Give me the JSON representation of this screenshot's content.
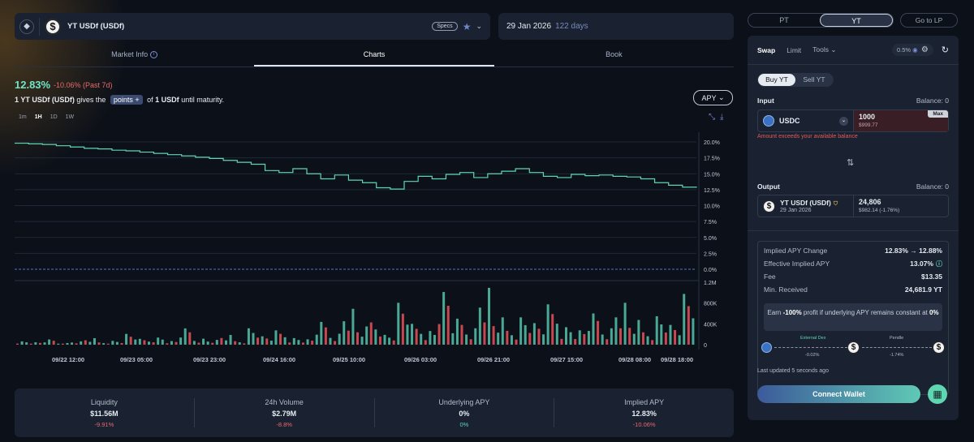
{
  "market": {
    "name": "YT USDf (USDf)",
    "specs_label": "Specs",
    "maturity_date": "29 Jan 2026",
    "days_left": "122 days"
  },
  "tabs": [
    "Market Info",
    "Charts",
    "Book"
  ],
  "summary": {
    "apy": "12.83%",
    "change": "-10.06% (Past 7d)",
    "sentence_pre": "1 YT USDf (USDf)",
    "sentence_mid": " gives the ",
    "points_label": "points +",
    "sentence_post_a": " of ",
    "sentence_post_b": "1 USDf",
    "sentence_post_c": " until maturity.",
    "selector": "APY"
  },
  "timeframes": [
    "1m",
    "1H",
    "1D",
    "1W"
  ],
  "chart_data": {
    "type": "line",
    "y_ticks": [
      "20.0%",
      "17.5%",
      "15.0%",
      "12.5%",
      "10.0%",
      "7.5%",
      "5.0%",
      "2.5%",
      "0.0%"
    ],
    "ylim": [
      0,
      20
    ],
    "volume_ticks": [
      "1.2M",
      "800K",
      "400K",
      "0"
    ],
    "x_ticks": [
      "09/22 12:00",
      "09/23 05:00",
      "09/23 23:00",
      "09/24 16:00",
      "09/25 10:00",
      "09/26 03:00",
      "09/26 21:00",
      "09/27 15:00",
      "09/28 08:00",
      "09/28 18:00"
    ],
    "apy_series": [
      19.8,
      19.7,
      19.6,
      19.4,
      19.2,
      19.0,
      18.9,
      18.7,
      18.6,
      18.4,
      18.2,
      18.0,
      17.8,
      17.6,
      17.4,
      17.1,
      16.8,
      16.5,
      15.5,
      15.2,
      15.8,
      15.0,
      14.2,
      14.8,
      14.0,
      13.6,
      12.8,
      12.6,
      13.8,
      14.6,
      14.2,
      14.9,
      15.2,
      14.4,
      15.0,
      15.4,
      15.8,
      15.2,
      14.6,
      14.4,
      14.9,
      14.7,
      14.8,
      14.6,
      14.5,
      14.2,
      13.6,
      13.2,
      12.9,
      12.8
    ],
    "volume_series": [
      60,
      40,
      80,
      30,
      55,
      100,
      45,
      70,
      180,
      90,
      130,
      60,
      250,
      110,
      80,
      150,
      70,
      300,
      140,
      220,
      120,
      90,
      350,
      200,
      600,
      280,
      450,
      180,
      700,
      320,
      250,
      880,
      400,
      300,
      950,
      420,
      280,
      500,
      360,
      620,
      320,
      240,
      480,
      300,
      700,
      380,
      250,
      520,
      330,
      780
    ]
  },
  "stats": [
    {
      "label": "Liquidity",
      "value": "$11.56M",
      "change": "-9.91%",
      "dir": "neg"
    },
    {
      "label": "24h Volume",
      "value": "$2.79M",
      "change": "-8.8%",
      "dir": "neg"
    },
    {
      "label": "Underlying APY",
      "value": "0%",
      "change": "0%",
      "dir": "pos"
    },
    {
      "label": "Implied APY",
      "value": "12.83%",
      "change": "-10.06%",
      "dir": "neg"
    }
  ],
  "toggle": {
    "pt": "PT",
    "yt": "YT",
    "go_lp": "Go to LP"
  },
  "trade": {
    "swap": "Swap",
    "limit": "Limit",
    "tools": "Tools",
    "slippage": "0.5%",
    "buy": "Buy YT",
    "sell": "Sell YT",
    "input_label": "Input",
    "input_balance": "Balance: 0",
    "input_token": "USDC",
    "input_amount": "1000",
    "input_usd": "$999.77",
    "max_label": "Max",
    "error": "Amount exceeds your available balance",
    "output_label": "Output",
    "output_balance": "Balance: 0",
    "output_token": "YT USDf (USDf)",
    "output_date": "29 Jan 2026",
    "output_amount": "24,806",
    "output_usd": "$982.14 (-1.76%)"
  },
  "details": {
    "rows": [
      {
        "k": "Implied APY Change",
        "v": "12.83% → 12.88%"
      },
      {
        "k": "Effective Implied APY",
        "v": "13.07%"
      },
      {
        "k": "Fee",
        "v": "$13.35"
      },
      {
        "k": "Min. Received",
        "v": "24,681.9 YT"
      }
    ],
    "earn_pre": "Earn ",
    "earn_pct": "-100%",
    "earn_mid": " profit if underlying APY remains constant at ",
    "earn_val": "0%",
    "route_a": "External Dex",
    "route_a_pct": "-0.02%",
    "route_b": "Pendle",
    "route_b_pct": "-1.74%"
  },
  "footer": {
    "updated": "Last updated 5 seconds ago",
    "connect": "Connect Wallet"
  },
  "colors": {
    "accent": "#5fd6b2",
    "negative": "#e76a6a",
    "line": "#5fd6b2"
  }
}
